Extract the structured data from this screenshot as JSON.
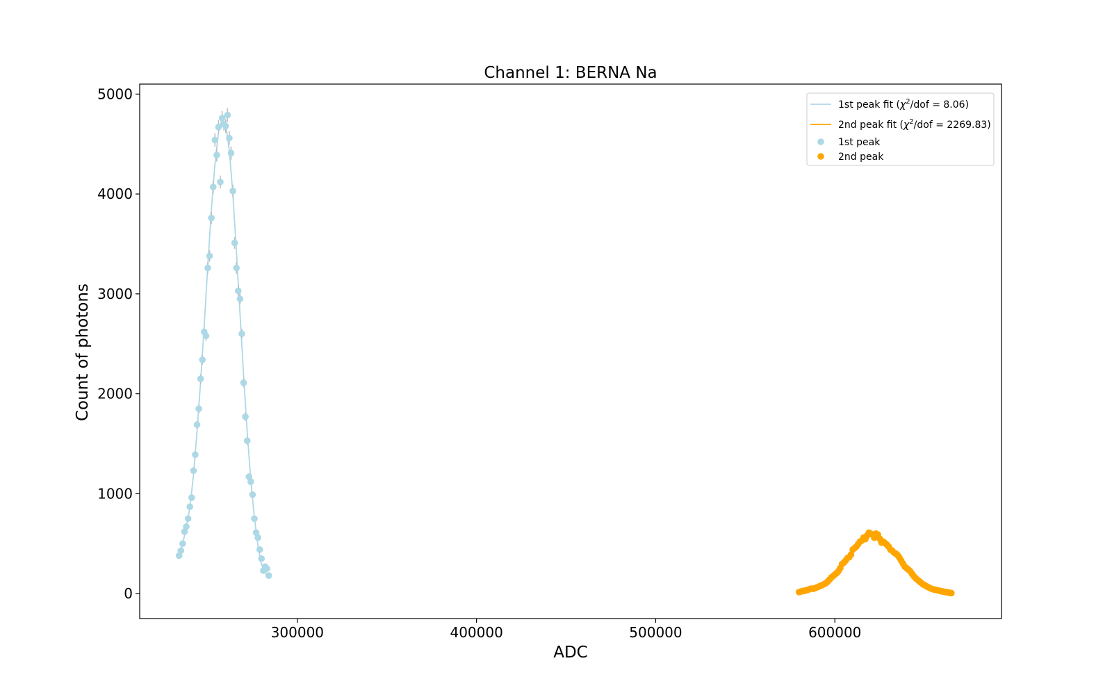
{
  "chart_data": {
    "type": "scatter",
    "title": "Channel 1: BERNA Na",
    "xlabel": "ADC",
    "ylabel": "Count of photons",
    "xlim": [
      212000,
      693000
    ],
    "ylim": [
      -250,
      5100
    ],
    "xticks": [
      300000,
      400000,
      500000,
      600000
    ],
    "yticks": [
      0,
      1000,
      2000,
      3000,
      4000,
      5000
    ],
    "grid": false,
    "legend_position": "top-right",
    "legend": {
      "fit1_prefix": "1st peak fit (",
      "fit1_suffix": "/dof = 8.06)",
      "fit2_prefix": "2nd peak fit (",
      "fit2_suffix": "/dof = 2269.83)",
      "chi_symbol": "χ",
      "chi_power": "2",
      "peak1": "1st peak",
      "peak2": "2nd peak"
    },
    "colors": {
      "peak1": "#add8e6",
      "peak2": "#ffa500"
    },
    "series": [
      {
        "name": "1st peak",
        "points": [
          [
            234000,
            380
          ],
          [
            235000,
            430
          ],
          [
            236000,
            500
          ],
          [
            237000,
            620
          ],
          [
            238000,
            670
          ],
          [
            239000,
            750
          ],
          [
            240000,
            870
          ],
          [
            241000,
            960
          ],
          [
            242000,
            1230
          ],
          [
            243000,
            1390
          ],
          [
            244000,
            1690
          ],
          [
            245000,
            1850
          ],
          [
            246000,
            2150
          ],
          [
            247000,
            2340
          ],
          [
            248000,
            2620
          ],
          [
            249000,
            2580
          ],
          [
            250000,
            3260
          ],
          [
            251000,
            3380
          ],
          [
            252000,
            3760
          ],
          [
            253000,
            4070
          ],
          [
            254000,
            4540
          ],
          [
            255000,
            4390
          ],
          [
            256000,
            4670
          ],
          [
            257000,
            4120
          ],
          [
            258000,
            4760
          ],
          [
            259000,
            4700
          ],
          [
            260000,
            4680
          ],
          [
            261000,
            4790
          ],
          [
            262000,
            4560
          ],
          [
            263000,
            4410
          ],
          [
            264000,
            4030
          ],
          [
            265000,
            3510
          ],
          [
            266000,
            3260
          ],
          [
            267000,
            3030
          ],
          [
            268000,
            2950
          ],
          [
            269000,
            2600
          ],
          [
            270000,
            2110
          ],
          [
            271000,
            1770
          ],
          [
            272000,
            1530
          ],
          [
            273000,
            1170
          ],
          [
            274000,
            1120
          ],
          [
            275000,
            990
          ],
          [
            276000,
            750
          ],
          [
            277000,
            610
          ],
          [
            278000,
            560
          ],
          [
            279000,
            440
          ],
          [
            280000,
            350
          ],
          [
            281000,
            230
          ],
          [
            282000,
            270
          ],
          [
            283000,
            250
          ],
          [
            284000,
            180
          ]
        ],
        "fit": [
          [
            234000,
            380
          ],
          [
            236000,
            500
          ],
          [
            238000,
            660
          ],
          [
            240000,
            860
          ],
          [
            242000,
            1180
          ],
          [
            244000,
            1620
          ],
          [
            246000,
            2120
          ],
          [
            248000,
            2680
          ],
          [
            250000,
            3280
          ],
          [
            252000,
            3840
          ],
          [
            254000,
            4300
          ],
          [
            256000,
            4620
          ],
          [
            258000,
            4760
          ],
          [
            260000,
            4700
          ],
          [
            262000,
            4440
          ],
          [
            264000,
            4000
          ],
          [
            266000,
            3420
          ],
          [
            268000,
            2800
          ],
          [
            270000,
            2180
          ],
          [
            272000,
            1620
          ],
          [
            274000,
            1140
          ],
          [
            276000,
            760
          ],
          [
            278000,
            480
          ],
          [
            280000,
            290
          ],
          [
            282000,
            220
          ],
          [
            284000,
            180
          ]
        ]
      },
      {
        "name": "2nd peak",
        "points": [
          [
            580000,
            15
          ],
          [
            581000,
            20
          ],
          [
            582000,
            25
          ],
          [
            583000,
            28
          ],
          [
            584000,
            32
          ],
          [
            585000,
            38
          ],
          [
            586000,
            45
          ],
          [
            587000,
            50
          ],
          [
            588000,
            48
          ],
          [
            589000,
            55
          ],
          [
            590000,
            62
          ],
          [
            591000,
            70
          ],
          [
            592000,
            78
          ],
          [
            593000,
            85
          ],
          [
            594000,
            95
          ],
          [
            595000,
            105
          ],
          [
            596000,
            120
          ],
          [
            597000,
            140
          ],
          [
            598000,
            160
          ],
          [
            599000,
            175
          ],
          [
            600000,
            190
          ],
          [
            601000,
            205
          ],
          [
            602000,
            225
          ],
          [
            603000,
            255
          ],
          [
            604000,
            295
          ],
          [
            605000,
            310
          ],
          [
            606000,
            330
          ],
          [
            607000,
            355
          ],
          [
            608000,
            365
          ],
          [
            609000,
            390
          ],
          [
            610000,
            440
          ],
          [
            611000,
            455
          ],
          [
            612000,
            470
          ],
          [
            613000,
            495
          ],
          [
            614000,
            520
          ],
          [
            615000,
            530
          ],
          [
            616000,
            560
          ],
          [
            617000,
            545
          ],
          [
            618000,
            580
          ],
          [
            619000,
            610
          ],
          [
            620000,
            600
          ],
          [
            621000,
            590
          ],
          [
            622000,
            560
          ],
          [
            623000,
            600
          ],
          [
            624000,
            590
          ],
          [
            625000,
            550
          ],
          [
            626000,
            510
          ],
          [
            627000,
            520
          ],
          [
            628000,
            505
          ],
          [
            629000,
            490
          ],
          [
            630000,
            470
          ],
          [
            631000,
            440
          ],
          [
            632000,
            430
          ],
          [
            633000,
            410
          ],
          [
            634000,
            400
          ],
          [
            635000,
            385
          ],
          [
            636000,
            360
          ],
          [
            637000,
            330
          ],
          [
            638000,
            300
          ],
          [
            639000,
            270
          ],
          [
            640000,
            255
          ],
          [
            641000,
            240
          ],
          [
            642000,
            225
          ],
          [
            643000,
            200
          ],
          [
            644000,
            175
          ],
          [
            645000,
            155
          ],
          [
            646000,
            140
          ],
          [
            647000,
            125
          ],
          [
            648000,
            110
          ],
          [
            649000,
            95
          ],
          [
            650000,
            85
          ],
          [
            651000,
            75
          ],
          [
            652000,
            65
          ],
          [
            653000,
            55
          ],
          [
            654000,
            48
          ],
          [
            655000,
            42
          ],
          [
            656000,
            38
          ],
          [
            657000,
            35
          ],
          [
            658000,
            30
          ],
          [
            659000,
            25
          ],
          [
            660000,
            22
          ],
          [
            661000,
            18
          ],
          [
            662000,
            15
          ],
          [
            663000,
            12
          ],
          [
            664000,
            8
          ],
          [
            665000,
            5
          ]
        ],
        "fit": [
          [
            580000,
            18
          ],
          [
            586000,
            40
          ],
          [
            592000,
            80
          ],
          [
            598000,
            160
          ],
          [
            604000,
            280
          ],
          [
            610000,
            420
          ],
          [
            614000,
            510
          ],
          [
            618000,
            570
          ],
          [
            621000,
            590
          ],
          [
            624000,
            575
          ],
          [
            628000,
            510
          ],
          [
            632000,
            420
          ],
          [
            636000,
            320
          ],
          [
            640000,
            230
          ],
          [
            645000,
            140
          ],
          [
            650000,
            80
          ],
          [
            655000,
            42
          ],
          [
            660000,
            20
          ],
          [
            665000,
            8
          ]
        ]
      }
    ]
  }
}
